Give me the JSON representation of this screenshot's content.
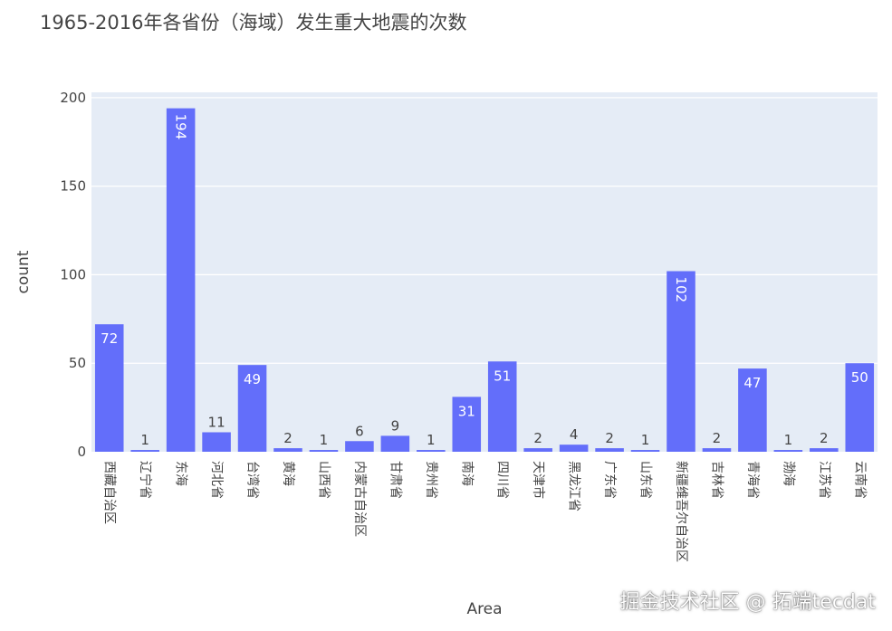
{
  "chart_data": {
    "type": "bar",
    "title": "1965-2016年各省份（海域）发生重大地震的次数",
    "xlabel": "Area",
    "ylabel": "count",
    "ylim": [
      0,
      203
    ],
    "yticks": [
      0,
      50,
      100,
      150,
      200
    ],
    "grid": true,
    "bar_color": "#636efa",
    "plot_bg": "#e5ecf6",
    "categories": [
      "西藏自治区",
      "辽宁省",
      "东海",
      "河北省",
      "台湾省",
      "黄海",
      "山西省",
      "内蒙古自治区",
      "甘肃省",
      "贵州省",
      "南海",
      "四川省",
      "天津市",
      "黑龙江省",
      "广东省",
      "山东省",
      "新疆维吾尔自治区",
      "吉林省",
      "青海省",
      "渤海",
      "江苏省",
      "云南省"
    ],
    "values": [
      72,
      1,
      194,
      11,
      49,
      2,
      1,
      6,
      9,
      1,
      31,
      51,
      2,
      4,
      2,
      1,
      102,
      2,
      47,
      1,
      2,
      50
    ]
  },
  "watermark": "掘金技术社区 @ 拓端tecdat"
}
